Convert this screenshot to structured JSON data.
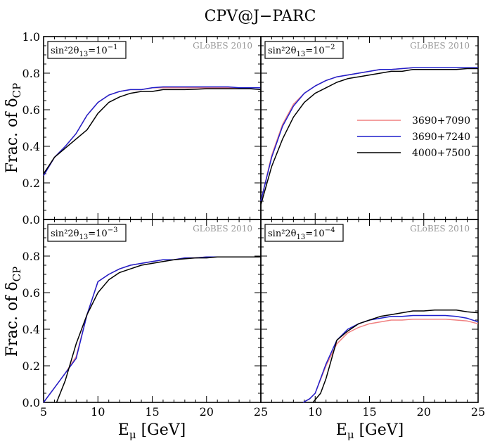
{
  "figure": {
    "title": "CPV@J−PARC",
    "ylabel_main": "Frac. of δ",
    "ylabel_sub": "CP",
    "xlabel_main": "E",
    "xlabel_sub": "μ",
    "xlabel_unit": " [GeV]",
    "watermark": "GLoBES 2010"
  },
  "legend": [
    {
      "label": "3690+7090",
      "color": "#f08080"
    },
    {
      "label": "3690+7240",
      "color": "#1f1fcc"
    },
    {
      "label": "4000+7500",
      "color": "#000000"
    }
  ],
  "chart_data": [
    {
      "type": "line",
      "panel": "top-left",
      "label_main": "sin²2θ",
      "label_sub": "13",
      "label_tail": "=10",
      "label_exp": "−1",
      "xlim": [
        5,
        25
      ],
      "ylim": [
        0,
        1.0
      ],
      "yticks": [
        "0.0",
        "0.2",
        "0.4",
        "0.6",
        "0.8",
        "1.0"
      ],
      "xticks": [],
      "series": [
        {
          "name": "3690+7090",
          "color": "#f08080",
          "x": [
            5,
            6,
            7,
            8,
            9,
            10,
            11,
            12,
            13,
            14,
            15,
            16,
            17,
            18,
            19,
            20,
            21,
            22,
            23,
            24,
            25
          ],
          "y": [
            0.24,
            0.34,
            0.4,
            0.47,
            0.57,
            0.64,
            0.68,
            0.7,
            0.71,
            0.71,
            0.72,
            0.72,
            0.72,
            0.72,
            0.72,
            0.72,
            0.72,
            0.72,
            0.72,
            0.72,
            0.72
          ]
        },
        {
          "name": "3690+7240",
          "color": "#1f1fcc",
          "x": [
            5,
            6,
            7,
            8,
            9,
            10,
            11,
            12,
            13,
            14,
            15,
            16,
            17,
            18,
            19,
            20,
            21,
            22,
            23,
            24,
            25
          ],
          "y": [
            0.24,
            0.34,
            0.4,
            0.47,
            0.57,
            0.64,
            0.68,
            0.7,
            0.71,
            0.71,
            0.72,
            0.725,
            0.725,
            0.725,
            0.725,
            0.725,
            0.725,
            0.725,
            0.72,
            0.72,
            0.72
          ]
        },
        {
          "name": "4000+7500",
          "color": "#000000",
          "x": [
            5,
            6,
            7,
            8,
            9,
            10,
            11,
            12,
            13,
            14,
            15,
            16,
            17,
            18,
            19,
            20,
            21,
            22,
            23,
            24,
            25
          ],
          "y": [
            0.25,
            0.34,
            0.39,
            0.44,
            0.49,
            0.58,
            0.64,
            0.67,
            0.69,
            0.7,
            0.7,
            0.71,
            0.71,
            0.71,
            0.712,
            0.715,
            0.715,
            0.715,
            0.715,
            0.715,
            0.71
          ]
        }
      ]
    },
    {
      "type": "line",
      "panel": "top-right",
      "label_main": "sin²2θ",
      "label_sub": "13",
      "label_tail": "=10",
      "label_exp": "−2",
      "xlim": [
        5,
        25
      ],
      "ylim": [
        0,
        1.0
      ],
      "yticks": [],
      "xticks": [],
      "series": [
        {
          "name": "3690+7090",
          "color": "#f08080",
          "x": [
            5,
            6,
            7,
            8,
            9,
            10,
            11,
            12,
            13,
            14,
            15,
            16,
            17,
            18,
            19,
            20,
            21,
            22,
            23,
            24,
            25
          ],
          "y": [
            0.1,
            0.35,
            0.52,
            0.63,
            0.69,
            0.73,
            0.76,
            0.78,
            0.79,
            0.8,
            0.81,
            0.82,
            0.82,
            0.825,
            0.83,
            0.83,
            0.83,
            0.83,
            0.83,
            0.83,
            0.83
          ]
        },
        {
          "name": "3690+7240",
          "color": "#1f1fcc",
          "x": [
            5,
            6,
            7,
            8,
            9,
            10,
            11,
            12,
            13,
            14,
            15,
            16,
            17,
            18,
            19,
            20,
            21,
            22,
            23,
            24,
            25
          ],
          "y": [
            0.1,
            0.34,
            0.51,
            0.62,
            0.69,
            0.73,
            0.76,
            0.78,
            0.79,
            0.8,
            0.81,
            0.82,
            0.82,
            0.825,
            0.83,
            0.83,
            0.83,
            0.83,
            0.83,
            0.83,
            0.83
          ]
        },
        {
          "name": "4000+7500",
          "color": "#000000",
          "x": [
            5,
            6,
            7,
            8,
            9,
            10,
            11,
            12,
            13,
            14,
            15,
            16,
            17,
            18,
            19,
            20,
            21,
            22,
            23,
            24,
            25
          ],
          "y": [
            0.08,
            0.29,
            0.44,
            0.56,
            0.64,
            0.69,
            0.72,
            0.75,
            0.77,
            0.78,
            0.79,
            0.8,
            0.81,
            0.81,
            0.82,
            0.82,
            0.82,
            0.82,
            0.82,
            0.825,
            0.825
          ]
        }
      ]
    },
    {
      "type": "line",
      "panel": "bottom-left",
      "label_main": "sin²2θ",
      "label_sub": "13",
      "label_tail": "=10",
      "label_exp": "−3",
      "xlim": [
        5,
        25
      ],
      "ylim": [
        0,
        1.0
      ],
      "yticks": [
        "0.0",
        "0.2",
        "0.4",
        "0.6",
        "0.8"
      ],
      "xticks": [
        "5",
        "10",
        "15",
        "20",
        "25"
      ],
      "series": [
        {
          "name": "3690+7090",
          "color": "#f08080",
          "x": [
            5,
            6,
            7,
            8,
            9,
            10,
            11,
            12,
            13,
            14,
            15,
            16,
            17,
            18,
            19,
            20,
            21,
            22,
            23,
            24,
            25
          ],
          "y": [
            0.0,
            0.08,
            0.16,
            0.25,
            0.48,
            0.66,
            0.7,
            0.73,
            0.75,
            0.76,
            0.77,
            0.78,
            0.78,
            0.79,
            0.79,
            0.795,
            0.795,
            0.795,
            0.795,
            0.795,
            0.795
          ]
        },
        {
          "name": "3690+7240",
          "color": "#1f1fcc",
          "x": [
            5,
            6,
            7,
            8,
            9,
            10,
            11,
            12,
            13,
            14,
            15,
            16,
            17,
            18,
            19,
            20,
            21,
            22,
            23,
            24,
            25
          ],
          "y": [
            0.0,
            0.08,
            0.16,
            0.24,
            0.48,
            0.66,
            0.7,
            0.73,
            0.75,
            0.76,
            0.77,
            0.78,
            0.78,
            0.79,
            0.79,
            0.795,
            0.795,
            0.795,
            0.795,
            0.795,
            0.795
          ]
        },
        {
          "name": "4000+7500",
          "color": "#000000",
          "x": [
            6.2,
            7,
            8,
            9,
            10,
            11,
            12,
            13,
            14,
            15,
            16,
            17,
            18,
            19,
            20,
            21,
            22,
            23,
            24,
            25
          ],
          "y": [
            0.0,
            0.12,
            0.32,
            0.48,
            0.6,
            0.67,
            0.71,
            0.73,
            0.75,
            0.76,
            0.77,
            0.78,
            0.785,
            0.79,
            0.79,
            0.795,
            0.795,
            0.795,
            0.795,
            0.795
          ]
        }
      ]
    },
    {
      "type": "line",
      "panel": "bottom-right",
      "label_main": "sin²2θ",
      "label_sub": "13",
      "label_tail": "=10",
      "label_exp": "−4",
      "xlim": [
        5,
        25
      ],
      "ylim": [
        0,
        1.0
      ],
      "yticks": [],
      "xticks": [
        "10",
        "15",
        "20",
        "25"
      ],
      "series": [
        {
          "name": "3690+7090",
          "color": "#f08080",
          "x": [
            8.9,
            9.5,
            10,
            11,
            12,
            13,
            14,
            15,
            16,
            17,
            18,
            19,
            20,
            21,
            22,
            23,
            24,
            25
          ],
          "y": [
            0.0,
            0.02,
            0.05,
            0.2,
            0.32,
            0.38,
            0.41,
            0.43,
            0.44,
            0.45,
            0.45,
            0.455,
            0.455,
            0.455,
            0.455,
            0.45,
            0.445,
            0.43
          ]
        },
        {
          "name": "3690+7240",
          "color": "#1f1fcc",
          "x": [
            8.9,
            9.5,
            10,
            11,
            12,
            13,
            14,
            15,
            16,
            17,
            18,
            19,
            20,
            21,
            22,
            23,
            24,
            25
          ],
          "y": [
            0.0,
            0.02,
            0.05,
            0.21,
            0.34,
            0.4,
            0.43,
            0.45,
            0.46,
            0.47,
            0.47,
            0.475,
            0.475,
            0.475,
            0.475,
            0.47,
            0.46,
            0.44
          ]
        },
        {
          "name": "4000+7500",
          "color": "#000000",
          "x": [
            9.8,
            10.5,
            11,
            12,
            13,
            14,
            15,
            16,
            17,
            18,
            19,
            20,
            21,
            22,
            23,
            24,
            25
          ],
          "y": [
            0.0,
            0.05,
            0.13,
            0.34,
            0.39,
            0.43,
            0.45,
            0.47,
            0.48,
            0.49,
            0.5,
            0.5,
            0.505,
            0.505,
            0.505,
            0.495,
            0.49
          ]
        }
      ]
    }
  ]
}
